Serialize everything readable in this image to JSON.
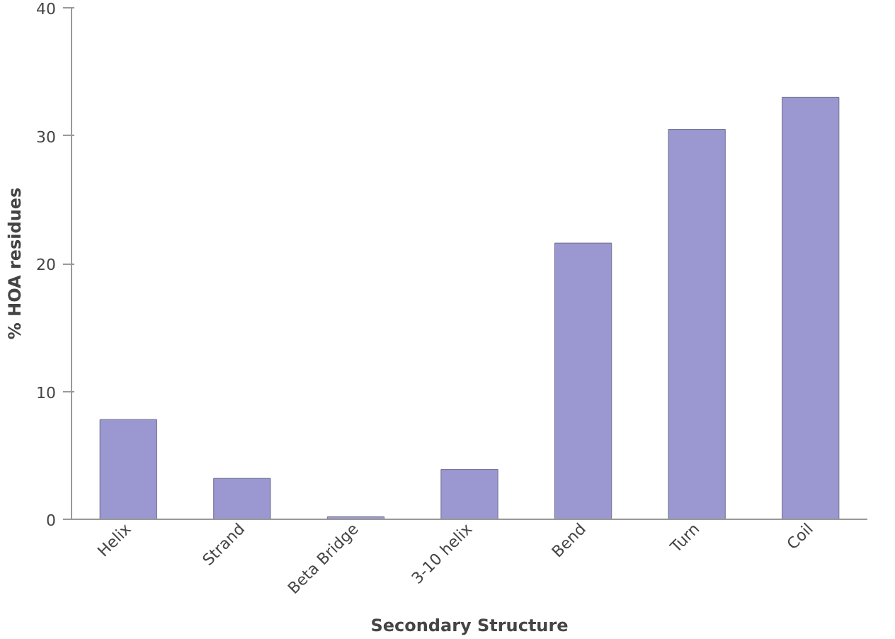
{
  "chart_data": {
    "type": "bar",
    "xlabel": "Secondary Structure",
    "ylabel": "% HOA residues",
    "categories": [
      "Helix",
      "Strand",
      "Beta Bridge",
      "3-10 helix",
      "Bend",
      "Turn",
      "Coil"
    ],
    "values": [
      7.8,
      3.2,
      0.2,
      3.9,
      21.6,
      30.5,
      33.0
    ],
    "color": "#9b97d0",
    "ylim": [
      0,
      40
    ],
    "yticks": [
      0,
      10,
      20,
      30,
      40
    ],
    "grid": false
  }
}
